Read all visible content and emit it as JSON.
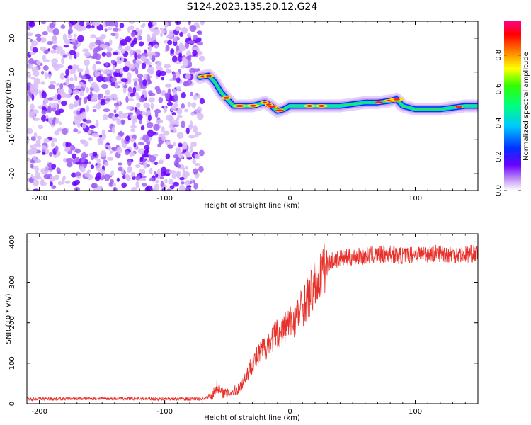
{
  "figure_title": "S124.2023.135.20.12.G24",
  "chart_data": [
    {
      "type": "heatmap",
      "title": "S124.2023.135.20.12.G24",
      "xlabel": "Height of straight line (km)",
      "ylabel": "Frequency (Hz)",
      "xlim": [
        -210,
        150
      ],
      "ylim": [
        -25,
        25
      ],
      "xticks": [
        -200,
        -100,
        0,
        100
      ],
      "yticks": [
        -20,
        -10,
        0,
        10,
        20
      ],
      "colorbar": {
        "label": "Normalized spectral amplitude",
        "range": [
          0,
          1
        ],
        "ticks": [
          0.0,
          0.2,
          0.4,
          0.6,
          0.8
        ],
        "colormap": "rainbow (white-violet-blue-cyan-green-yellow-red-magenta)"
      },
      "noise_region_x": [
        -210,
        -70
      ],
      "ridge": {
        "x": [
          -72,
          -65,
          -60,
          -55,
          -50,
          -45,
          -40,
          -35,
          -30,
          -25,
          -20,
          -15,
          -10,
          -5,
          0,
          10,
          20,
          30,
          40,
          50,
          60,
          70,
          80,
          85,
          90,
          100,
          110,
          120,
          130,
          140,
          150
        ],
        "y": [
          8.5,
          9,
          7,
          4,
          2,
          0,
          0,
          0,
          0,
          0.5,
          1,
          0,
          -1.5,
          -1,
          0,
          0,
          0,
          0,
          0,
          0.5,
          1,
          1,
          1.5,
          2,
          0,
          -1,
          -1,
          -1,
          -0.5,
          0,
          0
        ]
      }
    },
    {
      "type": "line",
      "xlabel": "Height of straight line (km)",
      "ylabel": "SNR (10 * v/v)",
      "xlim": [
        -210,
        150
      ],
      "ylim": [
        0,
        420
      ],
      "xticks": [
        -200,
        -100,
        0,
        100
      ],
      "yticks": [
        0,
        100,
        200,
        300,
        400
      ],
      "color": "#e8302a",
      "series": [
        {
          "x": [
            -210,
            -180,
            -150,
            -120,
            -90,
            -70,
            -62,
            -58,
            -55,
            -50,
            -45,
            -40,
            -35,
            -30,
            -25,
            -20,
            -15,
            -10,
            -5,
            0,
            5,
            10,
            15,
            20,
            25,
            30,
            35,
            40,
            50,
            60,
            70,
            80,
            90,
            100,
            110,
            120,
            130,
            140,
            150
          ],
          "y": [
            12,
            12,
            13,
            12,
            12,
            12,
            20,
            45,
            28,
            25,
            30,
            40,
            70,
            100,
            120,
            140,
            155,
            175,
            185,
            200,
            215,
            240,
            265,
            295,
            320,
            345,
            355,
            360,
            362,
            365,
            368,
            370,
            365,
            370,
            370,
            372,
            368,
            370,
            370
          ]
        }
      ]
    }
  ]
}
